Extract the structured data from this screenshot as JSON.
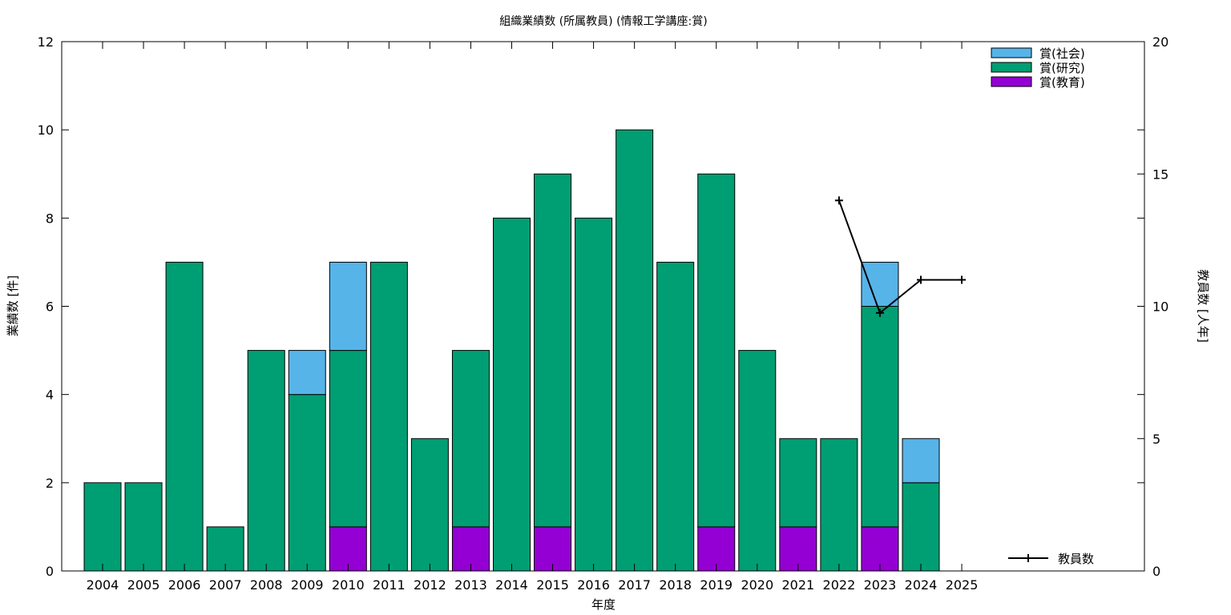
{
  "chart_data": {
    "type": "bar",
    "stacked": true,
    "title": "組織業績数 (所属教員) (情報工学講座:賞)",
    "xlabel": "年度",
    "ylabel": "業績数 [件]",
    "y2label": "教員数 [人年]",
    "categories": [
      "2004",
      "2005",
      "2006",
      "2007",
      "2008",
      "2009",
      "2010",
      "2011",
      "2012",
      "2013",
      "2014",
      "2015",
      "2016",
      "2017",
      "2018",
      "2019",
      "2020",
      "2021",
      "2022",
      "2023",
      "2024",
      "2025"
    ],
    "ylim": [
      0,
      12
    ],
    "yticks": [
      0,
      2,
      4,
      6,
      8,
      10,
      12
    ],
    "y2lim": [
      0,
      20
    ],
    "y2ticks": [
      0,
      5,
      10,
      15,
      20
    ],
    "grid": false,
    "legend_position": "top-right",
    "series": [
      {
        "name": "賞(教育)",
        "color": "#9400d3",
        "values": [
          0,
          0,
          0,
          0,
          0,
          0,
          1,
          0,
          0,
          1,
          0,
          1,
          0,
          0,
          0,
          1,
          0,
          1,
          0,
          1,
          0,
          0
        ]
      },
      {
        "name": "賞(研究)",
        "color": "#009e73",
        "values": [
          2,
          2,
          7,
          1,
          5,
          4,
          4,
          7,
          3,
          4,
          8,
          8,
          8,
          10,
          7,
          8,
          5,
          2,
          3,
          5,
          2,
          0
        ]
      },
      {
        "name": "賞(社会)",
        "color": "#56b4e9",
        "values": [
          0,
          0,
          0,
          0,
          0,
          1,
          2,
          0,
          0,
          0,
          0,
          0,
          0,
          0,
          0,
          0,
          0,
          0,
          0,
          1,
          1,
          0
        ]
      }
    ],
    "line_series": {
      "name": "教員数",
      "axis": "y2",
      "color": "#000000",
      "x": [
        "2022",
        "2023",
        "2024",
        "2025"
      ],
      "values": [
        14,
        9.75,
        11,
        11
      ]
    }
  }
}
